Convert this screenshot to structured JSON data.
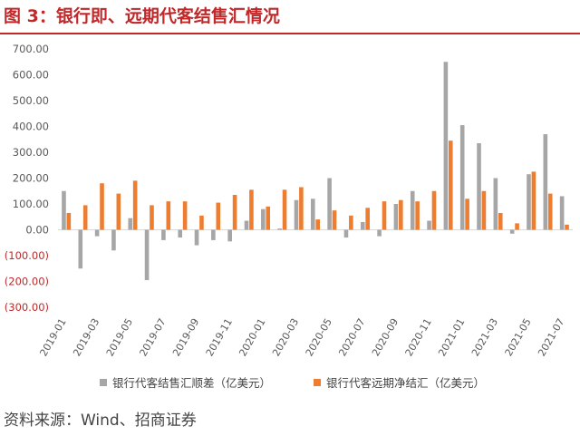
{
  "figure": {
    "title": "图 3：银行即、远期代客结售汇情况",
    "source": "资料来源：Wind、招商证券"
  },
  "colors": {
    "title": "#c0282a",
    "spot_series": "#a6a6a6",
    "forward_series": "#ed7d31",
    "negative_tick": "#c0282a",
    "axis_text": "#595959"
  },
  "chart_data": {
    "type": "bar",
    "title": "",
    "xlabel": "",
    "ylabel": "",
    "ylim": [
      -300,
      700
    ],
    "yticks": [
      "700.00",
      "600.00",
      "500.00",
      "400.00",
      "300.00",
      "200.00",
      "100.00",
      "0.00",
      "(100.00)",
      "(200.00)",
      "(300.00)"
    ],
    "ytick_values": [
      700,
      600,
      500,
      400,
      300,
      200,
      100,
      0,
      -100,
      -200,
      -300
    ],
    "categories": [
      "2019-01",
      "2019-02",
      "2019-03",
      "2019-04",
      "2019-05",
      "2019-06",
      "2019-07",
      "2019-08",
      "2019-09",
      "2019-10",
      "2019-11",
      "2019-12",
      "2020-01",
      "2020-02",
      "2020-03",
      "2020-04",
      "2020-05",
      "2020-06",
      "2020-07",
      "2020-08",
      "2020-09",
      "2020-10",
      "2020-11",
      "2020-12",
      "2021-01",
      "2021-02",
      "2021-03",
      "2021-04",
      "2021-05",
      "2021-06",
      "2021-07"
    ],
    "xtick_labels": [
      "2019-01",
      "2019-03",
      "2019-05",
      "2019-07",
      "2019-09",
      "2019-11",
      "2020-01",
      "2020-03",
      "2020-05",
      "2020-07",
      "2020-09",
      "2020-11",
      "2021-01",
      "2021-03",
      "2021-05",
      "2021-07"
    ],
    "grid": false,
    "legend_position": "bottom",
    "series": [
      {
        "name": "银行代客结售汇顺差（亿美元）",
        "values": [
          150,
          -150,
          -25,
          -80,
          45,
          -195,
          -40,
          -30,
          -60,
          -40,
          -45,
          35,
          80,
          5,
          115,
          120,
          200,
          -30,
          30,
          -25,
          100,
          150,
          35,
          650,
          405,
          335,
          200,
          -15,
          215,
          370,
          130
        ]
      },
      {
        "name": "银行代客远期净结汇（亿美元）",
        "values": [
          65,
          95,
          180,
          140,
          190,
          95,
          110,
          110,
          55,
          105,
          135,
          155,
          90,
          155,
          165,
          40,
          75,
          55,
          85,
          110,
          115,
          110,
          150,
          345,
          120,
          150,
          65,
          25,
          225,
          140,
          20
        ]
      }
    ]
  }
}
